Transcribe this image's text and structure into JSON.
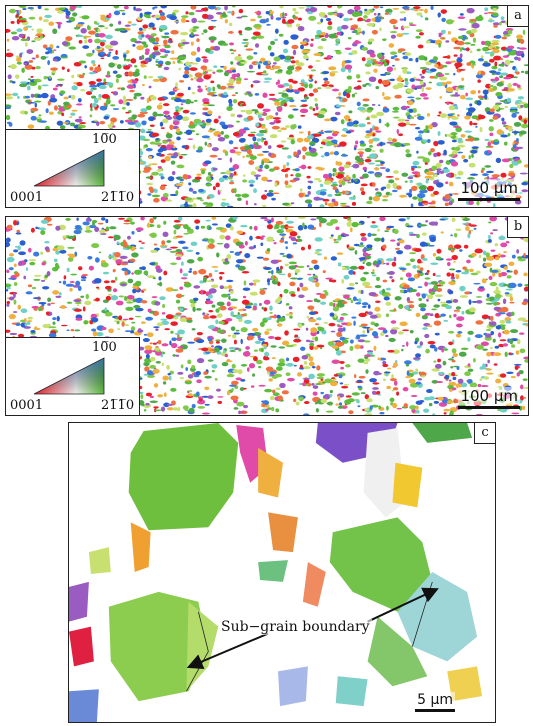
{
  "panels": {
    "a": {
      "label": "a",
      "ipf_top": "10̅0",
      "ipf_left": "0001",
      "ipf_right": "21̅1̅0",
      "scale": "100 μm"
    },
    "b": {
      "label": "b",
      "ipf_top": "10̅0",
      "ipf_left": "0001",
      "ipf_right": "21̅1̅0",
      "scale": "100 μm"
    },
    "c": {
      "label": "c",
      "annotation": "Sub−grain boundary",
      "scale": "5 μm"
    }
  },
  "colors": {
    "ipf_red": "#e8202a",
    "ipf_green": "#5cbc3c",
    "ipf_blue": "#2a5fd0",
    "grain_green": "#7ec84a",
    "grain_light_green": "#a8d860",
    "grain_cyan": "#9fd8e8"
  }
}
